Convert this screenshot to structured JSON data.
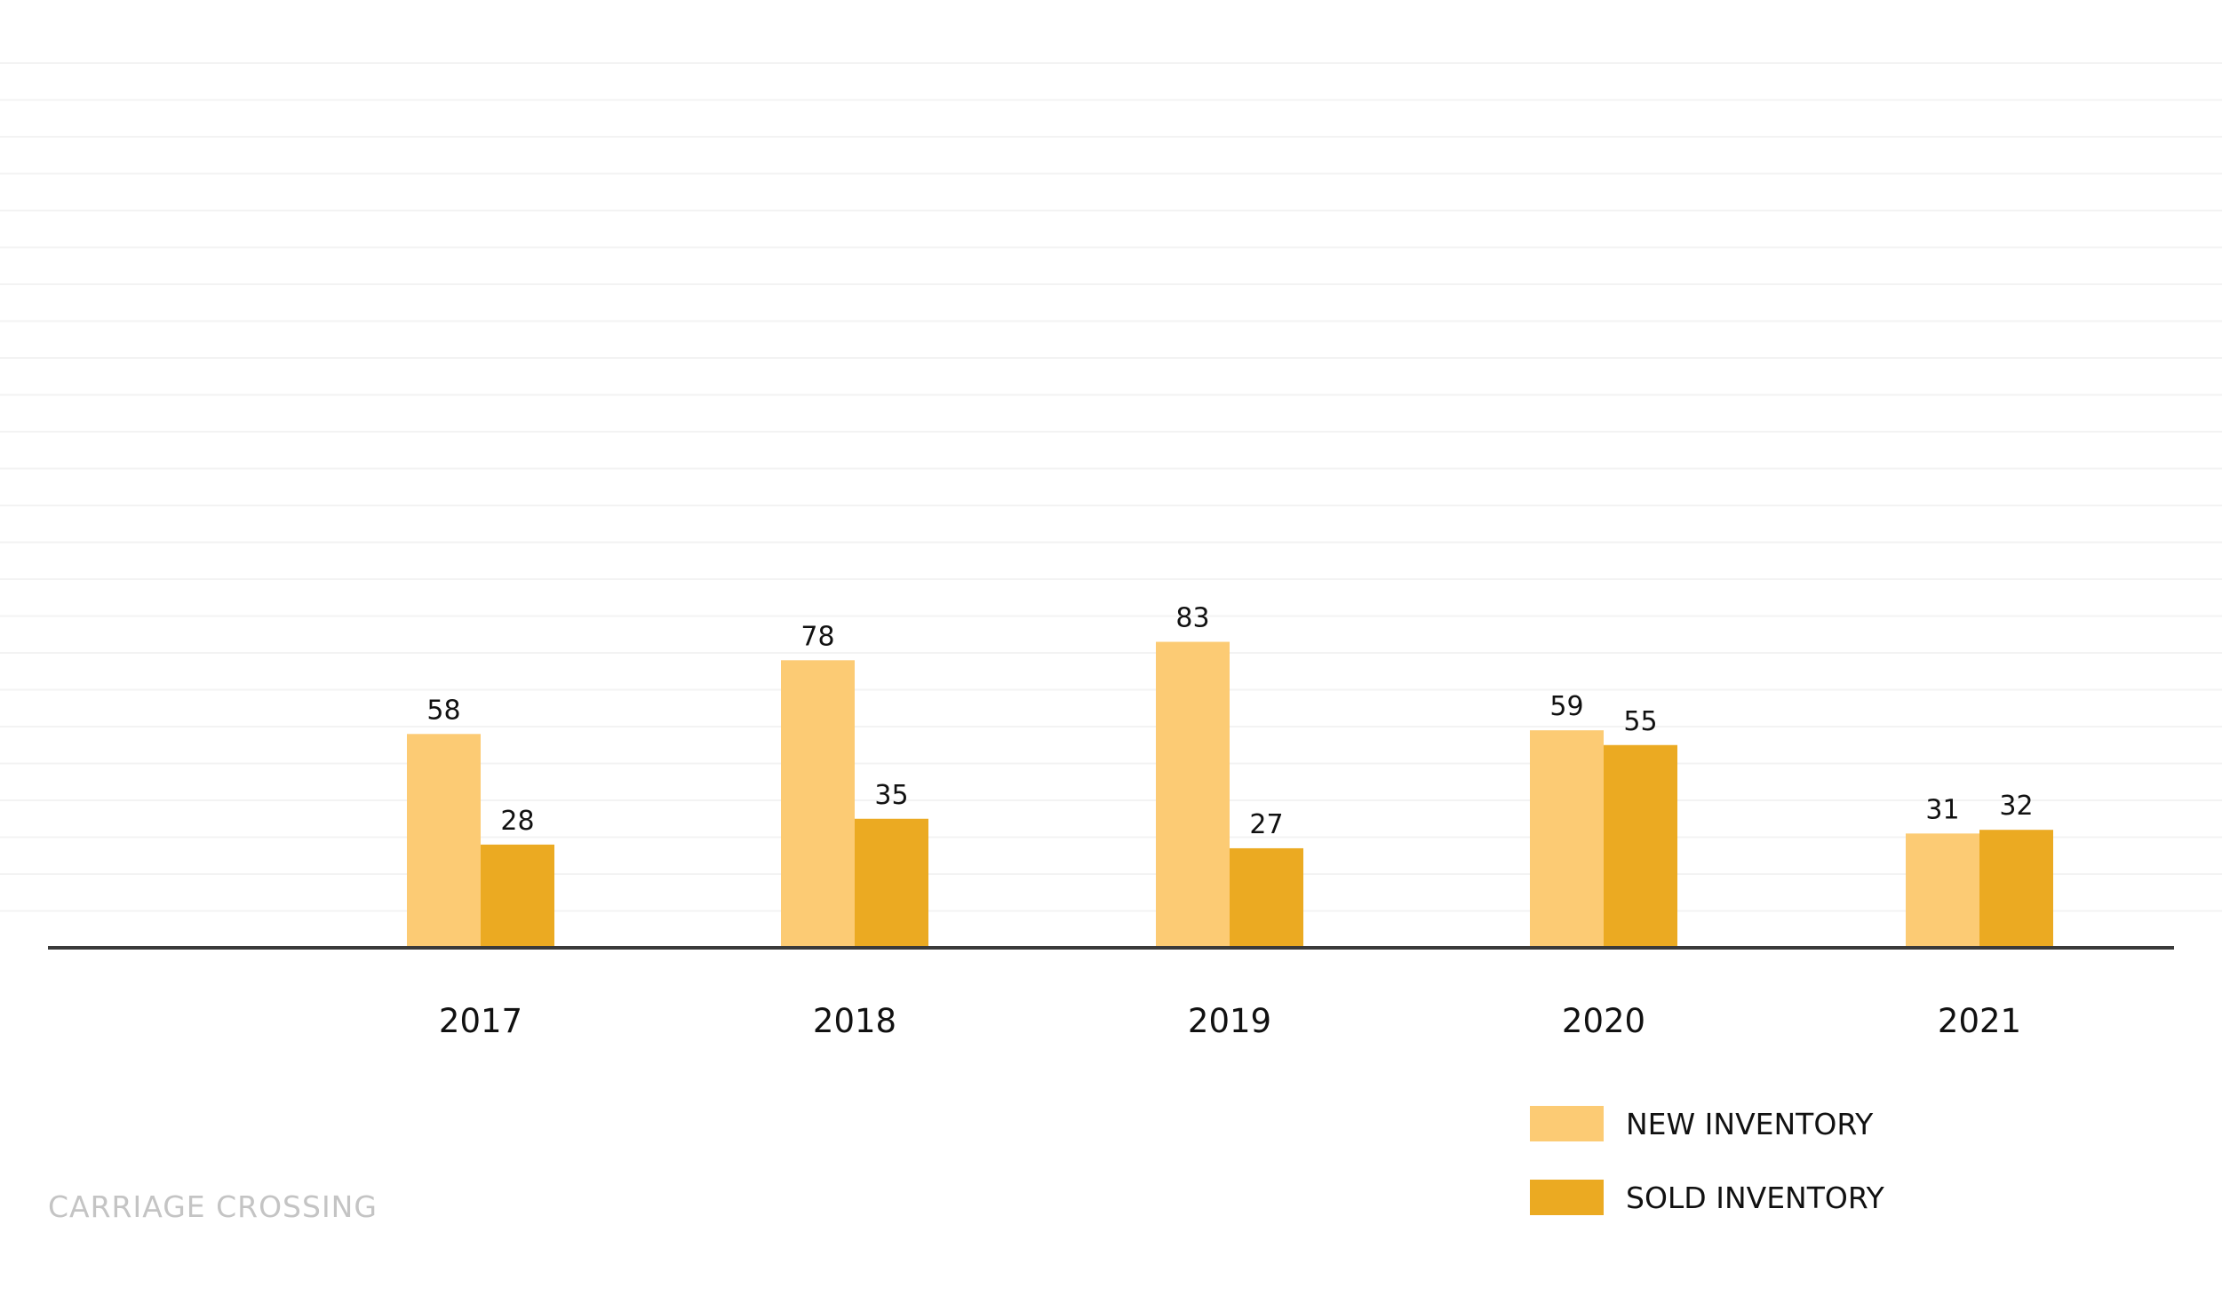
{
  "chart_data": {
    "type": "bar",
    "categories": [
      "2017",
      "2018",
      "2019",
      "2020",
      "2021"
    ],
    "series": [
      {
        "name": "NEW INVENTORY",
        "values": [
          58,
          78,
          83,
          59,
          31
        ],
        "color": "#fccb74"
      },
      {
        "name": "SOLD INVENTORY",
        "values": [
          28,
          35,
          27,
          55,
          32
        ],
        "color": "#ebaa22"
      }
    ],
    "title": "",
    "xlabel": "",
    "ylabel": "",
    "ylim": [
      0,
      240
    ],
    "grid": true,
    "legend_position": "bottom-right",
    "data_labels": true
  },
  "footer": {
    "watermark": "CARRIAGE CROSSING"
  },
  "colors": {
    "gridline": "#f3f3f3",
    "axis": "#3a3a3a"
  }
}
